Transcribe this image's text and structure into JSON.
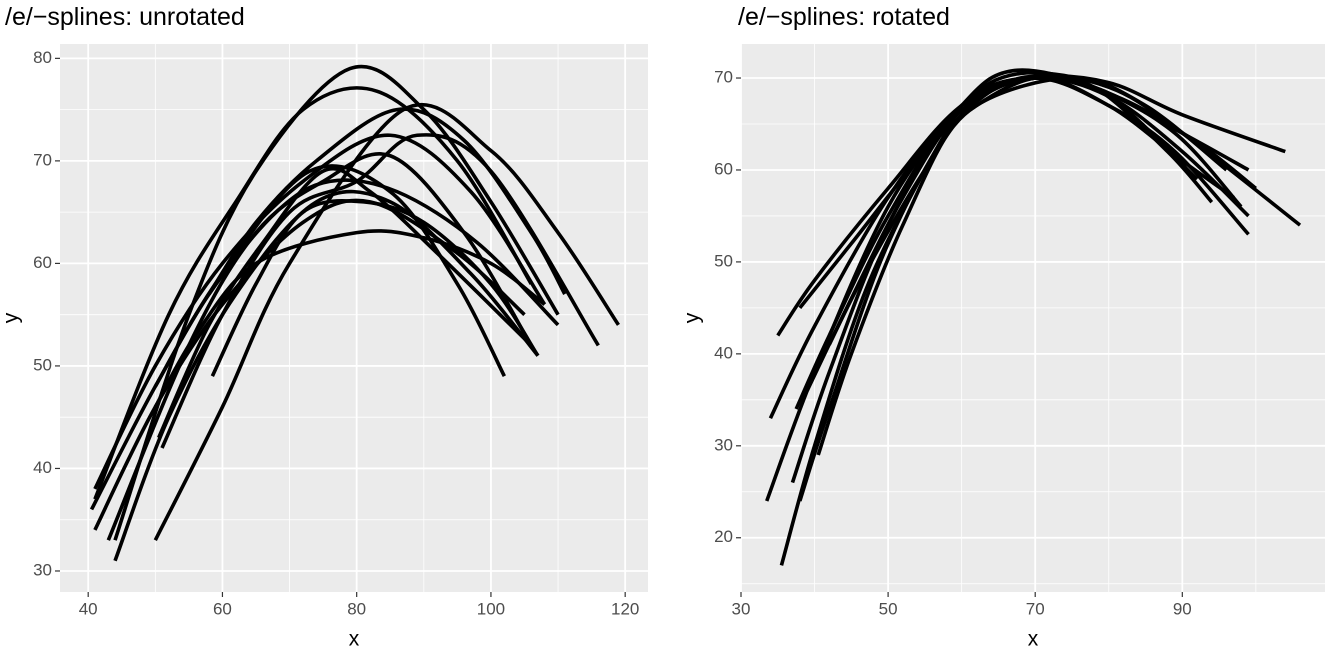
{
  "chart_data": [
    {
      "type": "line",
      "title": "/e/−splines: unrotated",
      "x_label": "x",
      "y_label": "y",
      "xlim": [
        35.8,
        123.4
      ],
      "ylim": [
        27.95,
        81.4
      ],
      "xticks": [
        40,
        60,
        80,
        100,
        120
      ],
      "yticks": [
        30,
        40,
        50,
        60,
        70,
        80
      ],
      "grid": true,
      "background": "#ebebeb",
      "series": [
        {
          "color": "#000000",
          "x": [
            44,
            55,
            65,
            79,
            90,
            100,
            110
          ],
          "values": [
            33,
            55,
            69,
            79,
            75,
            66,
            55
          ]
        },
        {
          "color": "#000000",
          "x": [
            41,
            52,
            62,
            72,
            83,
            95,
            106
          ],
          "values": [
            37,
            55,
            66,
            75,
            76.8,
            70,
            58
          ]
        },
        {
          "color": "#000000",
          "x": [
            50,
            60,
            70,
            87,
            100,
            110,
            119
          ],
          "values": [
            33,
            46,
            60,
            75,
            71,
            63,
            54
          ]
        },
        {
          "color": "#000000",
          "x": [
            41,
            50,
            60,
            72,
            85,
            97,
            108
          ],
          "values": [
            38,
            50,
            60,
            68,
            72.5,
            67,
            56
          ]
        },
        {
          "color": "#000000",
          "x": [
            43,
            55,
            65,
            75,
            85,
            96,
            106
          ],
          "values": [
            33,
            52,
            63,
            68,
            70.5,
            63,
            52
          ]
        },
        {
          "color": "#000000",
          "x": [
            40.5,
            50,
            60,
            73,
            85,
            95,
            102
          ],
          "values": [
            36,
            48,
            59,
            69,
            67,
            58,
            49
          ]
        },
        {
          "color": "#000000",
          "x": [
            44,
            52,
            62,
            74,
            85,
            97,
            107
          ],
          "values": [
            31,
            45,
            57,
            66,
            66,
            59,
            51
          ]
        },
        {
          "color": "#000000",
          "x": [
            41,
            50,
            60,
            72,
            82,
            95,
            105
          ],
          "values": [
            34,
            46,
            56,
            64,
            66,
            61,
            55
          ]
        },
        {
          "color": "#000000",
          "x": [
            50,
            56,
            65,
            80,
            90,
            100,
            108
          ],
          "values": [
            46,
            53,
            60,
            63,
            62.5,
            60,
            56
          ]
        },
        {
          "color": "#000000",
          "x": [
            58.5,
            65,
            72,
            81,
            90,
            100,
            107
          ],
          "values": [
            49,
            58,
            65,
            66,
            64,
            58,
            51
          ]
        },
        {
          "color": "#000000",
          "x": [
            50,
            58,
            68,
            76,
            86,
            98,
            110
          ],
          "values": [
            48,
            57,
            65,
            68,
            67,
            62,
            54
          ]
        },
        {
          "color": "#000000",
          "x": [
            50.5,
            58,
            66,
            75,
            82,
            92,
            106
          ],
          "values": [
            43,
            54,
            62,
            69,
            67,
            61,
            52
          ]
        },
        {
          "color": "#000000",
          "x": [
            51,
            60,
            70,
            80,
            89,
            100,
            116
          ],
          "values": [
            42,
            55,
            65,
            68,
            72.5,
            69,
            52
          ]
        },
        {
          "color": "#000000",
          "x": [
            58,
            65,
            74,
            86,
            96,
            106,
            111
          ],
          "values": [
            57,
            64,
            70,
            75,
            72,
            63,
            57
          ]
        }
      ]
    },
    {
      "type": "line",
      "title": "/e/−splines: rotated",
      "x_label": "x",
      "y_label": "y",
      "xlim": [
        30,
        109.4
      ],
      "ylim": [
        14.1,
        73.7
      ],
      "xticks": [
        30,
        50,
        70,
        90
      ],
      "yticks": [
        20,
        30,
        40,
        50,
        60,
        70
      ],
      "grid": true,
      "background": "#ebebeb",
      "series": [
        {
          "color": "#000000",
          "x": [
            35,
            40,
            50,
            60,
            70,
            80,
            90,
            104
          ],
          "values": [
            42,
            48,
            58,
            67,
            70,
            69.5,
            66,
            62
          ]
        },
        {
          "color": "#000000",
          "x": [
            34,
            40,
            50,
            60,
            68,
            80,
            90,
            106
          ],
          "values": [
            33,
            43,
            57,
            67,
            70.5,
            69,
            64,
            54
          ]
        },
        {
          "color": "#000000",
          "x": [
            33.5,
            40,
            50,
            60,
            67,
            78,
            90,
            99
          ],
          "values": [
            24,
            38,
            56,
            67,
            70.8,
            69,
            64,
            60
          ]
        },
        {
          "color": "#000000",
          "x": [
            35.5,
            40,
            47,
            55,
            60,
            68,
            78,
            89,
            98
          ],
          "values": [
            17,
            30,
            47,
            60,
            66,
            70,
            69,
            64,
            56
          ]
        },
        {
          "color": "#000000",
          "x": [
            37,
            42,
            50,
            60,
            70,
            80,
            90,
            99
          ],
          "values": [
            26,
            38,
            54,
            67,
            70,
            68,
            62,
            55
          ]
        },
        {
          "color": "#000000",
          "x": [
            37.5,
            42,
            50,
            60,
            70,
            80,
            89,
            99
          ],
          "values": [
            34,
            42,
            55,
            67,
            70,
            67,
            62,
            53
          ]
        },
        {
          "color": "#000000",
          "x": [
            39,
            45,
            52,
            60,
            70,
            81,
            92,
            100
          ],
          "values": [
            36,
            46,
            57,
            66.5,
            70,
            68,
            63,
            58
          ]
        },
        {
          "color": "#000000",
          "x": [
            40.5,
            45,
            52,
            60,
            70,
            80,
            90,
            97
          ],
          "values": [
            29,
            40,
            54,
            66,
            70,
            67,
            61,
            57
          ]
        },
        {
          "color": "#000000",
          "x": [
            38,
            45,
            55,
            62,
            70,
            78,
            88,
            94
          ],
          "values": [
            45,
            52,
            62,
            67,
            70,
            69,
            62,
            56.5
          ]
        },
        {
          "color": "#000000",
          "x": [
            42,
            47,
            55,
            62,
            75,
            85,
            96
          ],
          "values": [
            41,
            49,
            60,
            67,
            70,
            67,
            60
          ]
        },
        {
          "color": "#000000",
          "x": [
            38,
            42,
            50,
            60,
            70,
            80,
            92
          ],
          "values": [
            24,
            34,
            52,
            66,
            70,
            68,
            59
          ]
        }
      ]
    }
  ]
}
